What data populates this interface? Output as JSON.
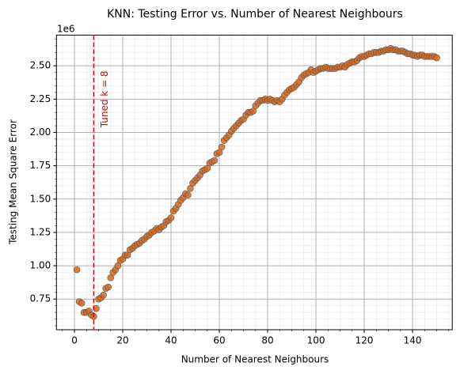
{
  "chart_data": {
    "type": "scatter",
    "title": "KNN: Testing Error vs. Number of Nearest Neighbours",
    "xlabel": "Number of Nearest Neighbours",
    "ylabel": "Testing Mean Square Error",
    "y_offset_label": "1e6",
    "color": "#d2691e",
    "x": [
      1,
      2,
      3,
      4,
      5,
      6,
      7,
      8,
      9,
      10,
      11,
      12,
      13,
      14,
      15,
      16,
      17,
      18,
      19,
      20,
      21,
      22,
      23,
      24,
      25,
      26,
      27,
      28,
      29,
      30,
      31,
      32,
      33,
      34,
      35,
      36,
      37,
      38,
      39,
      40,
      41,
      42,
      43,
      44,
      45,
      46,
      47,
      48,
      49,
      50,
      51,
      52,
      53,
      54,
      55,
      56,
      57,
      58,
      59,
      60,
      61,
      62,
      63,
      64,
      65,
      66,
      67,
      68,
      69,
      70,
      71,
      72,
      73,
      74,
      75,
      76,
      77,
      78,
      79,
      80,
      81,
      82,
      83,
      84,
      85,
      86,
      87,
      88,
      89,
      90,
      91,
      92,
      93,
      94,
      95,
      96,
      97,
      98,
      99,
      100,
      101,
      102,
      103,
      104,
      105,
      106,
      107,
      108,
      109,
      110,
      111,
      112,
      113,
      114,
      115,
      116,
      117,
      118,
      119,
      120,
      121,
      122,
      123,
      124,
      125,
      126,
      127,
      128,
      129,
      130,
      131,
      132,
      133,
      134,
      135,
      136,
      137,
      138,
      139,
      140,
      141,
      142,
      143,
      144,
      145,
      146,
      147,
      148,
      149,
      150
    ],
    "values": [
      0.97,
      0.73,
      0.72,
      0.65,
      0.65,
      0.66,
      0.63,
      0.62,
      0.68,
      0.75,
      0.76,
      0.78,
      0.83,
      0.84,
      0.91,
      0.95,
      0.97,
      1.0,
      1.04,
      1.05,
      1.08,
      1.08,
      1.12,
      1.13,
      1.15,
      1.16,
      1.17,
      1.19,
      1.2,
      1.22,
      1.23,
      1.25,
      1.26,
      1.28,
      1.27,
      1.29,
      1.3,
      1.33,
      1.34,
      1.36,
      1.41,
      1.43,
      1.46,
      1.49,
      1.51,
      1.54,
      1.53,
      1.58,
      1.62,
      1.64,
      1.66,
      1.68,
      1.71,
      1.72,
      1.73,
      1.77,
      1.78,
      1.79,
      1.84,
      1.85,
      1.89,
      1.94,
      1.96,
      1.98,
      2.01,
      2.03,
      2.05,
      2.07,
      2.09,
      2.1,
      2.13,
      2.15,
      2.15,
      2.16,
      2.2,
      2.22,
      2.24,
      2.24,
      2.25,
      2.24,
      2.25,
      2.24,
      2.23,
      2.24,
      2.23,
      2.25,
      2.28,
      2.3,
      2.32,
      2.33,
      2.34,
      2.36,
      2.38,
      2.41,
      2.43,
      2.44,
      2.45,
      2.47,
      2.45,
      2.46,
      2.47,
      2.48,
      2.48,
      2.49,
      2.48,
      2.48,
      2.48,
      2.48,
      2.49,
      2.49,
      2.5,
      2.49,
      2.51,
      2.52,
      2.53,
      2.53,
      2.54,
      2.56,
      2.57,
      2.57,
      2.58,
      2.59,
      2.59,
      2.6,
      2.6,
      2.6,
      2.61,
      2.61,
      2.62,
      2.62,
      2.63,
      2.62,
      2.62,
      2.61,
      2.61,
      2.61,
      2.6,
      2.59,
      2.59,
      2.58,
      2.58,
      2.57,
      2.58,
      2.58,
      2.57,
      2.57,
      2.57,
      2.57,
      2.57,
      2.56
    ],
    "xlim": [
      -7.45,
      156.45
    ],
    "xticks": [
      0,
      20,
      40,
      60,
      80,
      100,
      120,
      140
    ],
    "ylim": [
      0.52,
      2.73
    ],
    "yticks": [
      0.75,
      {
        "value": 1,
        "label": "1.00"
      },
      1.25,
      {
        "value": 1.5,
        "label": "1.50"
      },
      1.75,
      {
        "value": 2,
        "label": "2.00"
      },
      2.25,
      {
        "value": 2.5,
        "label": "2.50"
      }
    ],
    "grid": true,
    "minor_grid": true,
    "vline": {
      "x": 8,
      "label": "Tuned k = 8",
      "color": "#e00000"
    }
  }
}
